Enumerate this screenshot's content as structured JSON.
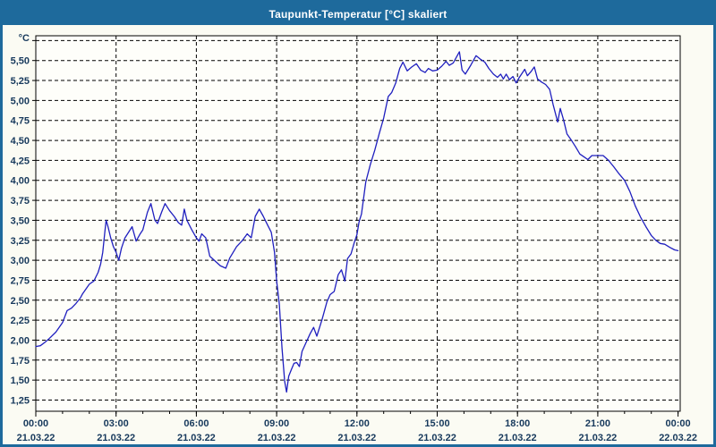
{
  "window": {
    "title": "Taupunkt-Temperatur [°C] skaliert"
  },
  "colors": {
    "titlebar_bg": "#1e6a9c",
    "frame": "#1e6a9c",
    "page_bg": "#fbfbf3",
    "plot_bg": "#fefefa",
    "line": "#1f1fbf",
    "grid": "#000000",
    "axis_text": "#17395c",
    "title_text": "#ffffff"
  },
  "chart_data": {
    "type": "line",
    "title": "Taupunkt-Temperatur [°C] skaliert",
    "unit_label": "°C",
    "grid": "dashed",
    "legend": "none",
    "x_axis": {
      "range_hours": [
        0,
        24
      ],
      "major_tick_hours": 3,
      "minor_tick_hours": 1,
      "ticks": [
        {
          "h": 0,
          "time": "00:00",
          "date": "21.03.22"
        },
        {
          "h": 3,
          "time": "03:00",
          "date": "21.03.22"
        },
        {
          "h": 6,
          "time": "06:00",
          "date": "21.03.22"
        },
        {
          "h": 9,
          "time": "09:00",
          "date": "21.03.22"
        },
        {
          "h": 12,
          "time": "12:00",
          "date": "21.03.22"
        },
        {
          "h": 15,
          "time": "15:00",
          "date": "21.03.22"
        },
        {
          "h": 18,
          "time": "18:00",
          "date": "21.03.22"
        },
        {
          "h": 21,
          "time": "21:00",
          "date": "21.03.22"
        },
        {
          "h": 24,
          "time": "00:00",
          "date": "22.03.22"
        }
      ]
    },
    "y_axis": {
      "min": 1.11,
      "max": 5.81,
      "grid_step": 0.25,
      "ticks": [
        {
          "v": 5.75,
          "label": ""
        },
        {
          "v": 5.5,
          "label": "5,50"
        },
        {
          "v": 5.25,
          "label": "5,25"
        },
        {
          "v": 5.0,
          "label": "5,00"
        },
        {
          "v": 4.75,
          "label": "4,75"
        },
        {
          "v": 4.5,
          "label": "4,50"
        },
        {
          "v": 4.25,
          "label": "4,25"
        },
        {
          "v": 4.0,
          "label": "4,00"
        },
        {
          "v": 3.75,
          "label": "3,75"
        },
        {
          "v": 3.5,
          "label": "3,50"
        },
        {
          "v": 3.25,
          "label": "3,25"
        },
        {
          "v": 3.0,
          "label": "3,00"
        },
        {
          "v": 2.75,
          "label": "2,75"
        },
        {
          "v": 2.5,
          "label": "2,50"
        },
        {
          "v": 2.25,
          "label": "2,25"
        },
        {
          "v": 2.0,
          "label": "2,00"
        },
        {
          "v": 1.75,
          "label": "1,75"
        },
        {
          "v": 1.5,
          "label": "1,50"
        },
        {
          "v": 1.25,
          "label": "1,25"
        }
      ]
    },
    "series": [
      {
        "name": "Taupunkt-Temperatur",
        "color": "#1f1fbf",
        "points": [
          [
            0.0,
            1.92
          ],
          [
            0.17,
            1.93
          ],
          [
            0.33,
            1.97
          ],
          [
            0.5,
            2.02
          ],
          [
            0.75,
            2.1
          ],
          [
            1.0,
            2.22
          ],
          [
            1.17,
            2.37
          ],
          [
            1.33,
            2.4
          ],
          [
            1.5,
            2.46
          ],
          [
            1.67,
            2.53
          ],
          [
            1.75,
            2.58
          ],
          [
            2.0,
            2.7
          ],
          [
            2.17,
            2.74
          ],
          [
            2.33,
            2.85
          ],
          [
            2.42,
            2.95
          ],
          [
            2.5,
            3.1
          ],
          [
            2.58,
            3.35
          ],
          [
            2.63,
            3.5
          ],
          [
            2.7,
            3.42
          ],
          [
            2.8,
            3.28
          ],
          [
            2.9,
            3.17
          ],
          [
            3.0,
            3.1
          ],
          [
            3.1,
            3.0
          ],
          [
            3.2,
            3.15
          ],
          [
            3.33,
            3.28
          ],
          [
            3.6,
            3.42
          ],
          [
            3.75,
            3.24
          ],
          [
            3.9,
            3.33
          ],
          [
            4.0,
            3.38
          ],
          [
            4.17,
            3.6
          ],
          [
            4.3,
            3.71
          ],
          [
            4.45,
            3.5
          ],
          [
            4.55,
            3.46
          ],
          [
            4.7,
            3.6
          ],
          [
            4.83,
            3.71
          ],
          [
            5.0,
            3.62
          ],
          [
            5.17,
            3.55
          ],
          [
            5.33,
            3.47
          ],
          [
            5.45,
            3.44
          ],
          [
            5.55,
            3.64
          ],
          [
            5.65,
            3.5
          ],
          [
            5.83,
            3.38
          ],
          [
            6.0,
            3.28
          ],
          [
            6.1,
            3.24
          ],
          [
            6.2,
            3.33
          ],
          [
            6.35,
            3.28
          ],
          [
            6.5,
            3.05
          ],
          [
            6.67,
            3.0
          ],
          [
            6.9,
            2.93
          ],
          [
            7.1,
            2.9
          ],
          [
            7.25,
            3.03
          ],
          [
            7.5,
            3.17
          ],
          [
            7.7,
            3.24
          ],
          [
            7.9,
            3.33
          ],
          [
            8.05,
            3.28
          ],
          [
            8.2,
            3.55
          ],
          [
            8.35,
            3.64
          ],
          [
            8.5,
            3.55
          ],
          [
            8.65,
            3.45
          ],
          [
            8.8,
            3.35
          ],
          [
            8.92,
            3.1
          ],
          [
            9.0,
            2.74
          ],
          [
            9.1,
            2.45
          ],
          [
            9.2,
            1.9
          ],
          [
            9.3,
            1.48
          ],
          [
            9.37,
            1.35
          ],
          [
            9.45,
            1.55
          ],
          [
            9.55,
            1.63
          ],
          [
            9.65,
            1.71
          ],
          [
            9.75,
            1.72
          ],
          [
            9.85,
            1.67
          ],
          [
            9.95,
            1.86
          ],
          [
            10.1,
            1.97
          ],
          [
            10.25,
            2.08
          ],
          [
            10.38,
            2.16
          ],
          [
            10.5,
            2.05
          ],
          [
            10.7,
            2.26
          ],
          [
            10.88,
            2.48
          ],
          [
            11.0,
            2.57
          ],
          [
            11.15,
            2.61
          ],
          [
            11.3,
            2.82
          ],
          [
            11.42,
            2.88
          ],
          [
            11.55,
            2.74
          ],
          [
            11.65,
            3.02
          ],
          [
            11.78,
            3.08
          ],
          [
            11.9,
            3.22
          ],
          [
            12.0,
            3.32
          ],
          [
            12.08,
            3.48
          ],
          [
            12.17,
            3.58
          ],
          [
            12.33,
            3.98
          ],
          [
            12.5,
            4.2
          ],
          [
            12.67,
            4.38
          ],
          [
            12.83,
            4.58
          ],
          [
            13.0,
            4.78
          ],
          [
            13.17,
            5.05
          ],
          [
            13.3,
            5.1
          ],
          [
            13.45,
            5.22
          ],
          [
            13.6,
            5.4
          ],
          [
            13.72,
            5.48
          ],
          [
            13.88,
            5.37
          ],
          [
            14.05,
            5.42
          ],
          [
            14.22,
            5.46
          ],
          [
            14.38,
            5.38
          ],
          [
            14.55,
            5.35
          ],
          [
            14.67,
            5.4
          ],
          [
            14.83,
            5.37
          ],
          [
            15.0,
            5.38
          ],
          [
            15.17,
            5.43
          ],
          [
            15.33,
            5.49
          ],
          [
            15.45,
            5.44
          ],
          [
            15.6,
            5.47
          ],
          [
            15.83,
            5.61
          ],
          [
            15.93,
            5.38
          ],
          [
            16.05,
            5.33
          ],
          [
            16.25,
            5.44
          ],
          [
            16.45,
            5.56
          ],
          [
            16.6,
            5.52
          ],
          [
            16.78,
            5.48
          ],
          [
            16.93,
            5.4
          ],
          [
            17.1,
            5.33
          ],
          [
            17.25,
            5.29
          ],
          [
            17.37,
            5.33
          ],
          [
            17.47,
            5.27
          ],
          [
            17.58,
            5.33
          ],
          [
            17.7,
            5.26
          ],
          [
            17.83,
            5.3
          ],
          [
            17.95,
            5.22
          ],
          [
            18.07,
            5.29
          ],
          [
            18.17,
            5.34
          ],
          [
            18.27,
            5.39
          ],
          [
            18.37,
            5.31
          ],
          [
            18.5,
            5.36
          ],
          [
            18.63,
            5.42
          ],
          [
            18.75,
            5.27
          ],
          [
            18.9,
            5.23
          ],
          [
            19.05,
            5.2
          ],
          [
            19.2,
            5.14
          ],
          [
            19.33,
            4.95
          ],
          [
            19.5,
            4.73
          ],
          [
            19.6,
            4.9
          ],
          [
            19.72,
            4.76
          ],
          [
            19.85,
            4.58
          ],
          [
            20.0,
            4.51
          ],
          [
            20.17,
            4.42
          ],
          [
            20.33,
            4.33
          ],
          [
            20.5,
            4.29
          ],
          [
            20.63,
            4.26
          ],
          [
            20.78,
            4.31
          ],
          [
            21.0,
            4.31
          ],
          [
            21.2,
            4.31
          ],
          [
            21.4,
            4.25
          ],
          [
            21.6,
            4.17
          ],
          [
            21.8,
            4.08
          ],
          [
            22.0,
            4.0
          ],
          [
            22.2,
            3.86
          ],
          [
            22.4,
            3.68
          ],
          [
            22.6,
            3.54
          ],
          [
            22.8,
            3.42
          ],
          [
            23.0,
            3.31
          ],
          [
            23.17,
            3.25
          ],
          [
            23.33,
            3.21
          ],
          [
            23.5,
            3.2
          ],
          [
            23.7,
            3.16
          ],
          [
            23.87,
            3.13
          ],
          [
            24.0,
            3.12
          ]
        ]
      }
    ]
  }
}
